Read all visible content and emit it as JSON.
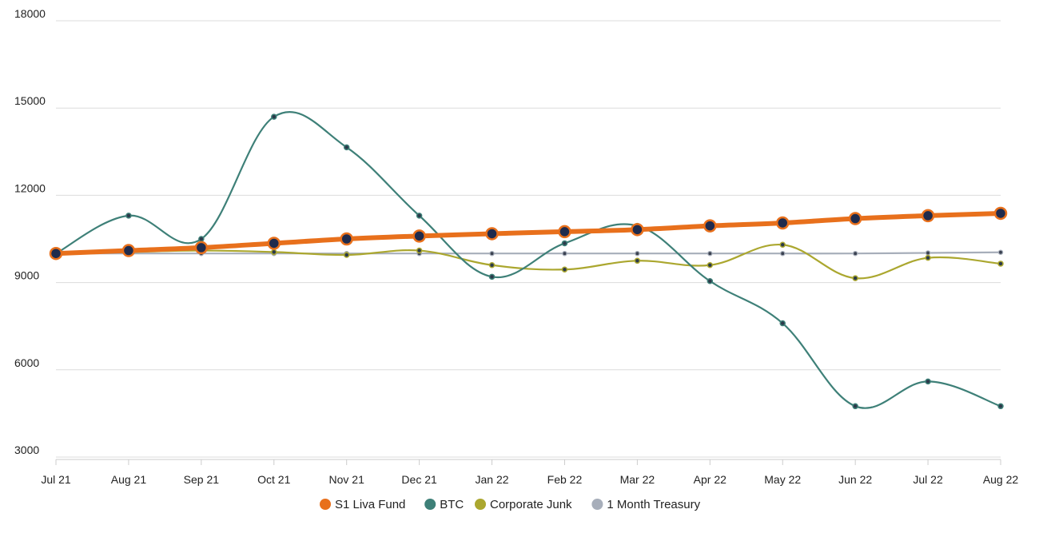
{
  "chart_data": {
    "type": "line",
    "title": "",
    "xlabel": "",
    "ylabel": "",
    "categories": [
      "Jul 21",
      "Aug 21",
      "Sep 21",
      "Oct 21",
      "Nov 21",
      "Dec 21",
      "Jan 22",
      "Feb 22",
      "Mar 22",
      "Apr 22",
      "May 22",
      "Jun 22",
      "Jul 22",
      "Aug 22"
    ],
    "ylim": [
      3000,
      18000
    ],
    "yticks": [
      3000,
      6000,
      9000,
      12000,
      15000,
      18000
    ],
    "grid": true,
    "legend_position": "bottom-center",
    "series": [
      {
        "name": "S1 Liva Fund",
        "color": "#e8701c",
        "values": [
          10000,
          10100,
          10200,
          10350,
          10500,
          10600,
          10680,
          10750,
          10820,
          10950,
          11050,
          11200,
          11300,
          11380
        ]
      },
      {
        "name": "BTC",
        "color": "#3e8078",
        "values": [
          10000,
          11300,
          10500,
          14700,
          13650,
          11300,
          9200,
          10350,
          10950,
          9050,
          7600,
          4750,
          5600,
          4750
        ]
      },
      {
        "name": "Corporate Junk",
        "color": "#aba72f",
        "values": [
          10000,
          10050,
          10100,
          10050,
          9950,
          10100,
          9600,
          9450,
          9750,
          9600,
          10300,
          9150,
          9850,
          9650
        ]
      },
      {
        "name": "1 Month Treasury",
        "color": "#a7aeba",
        "values": [
          10000,
          10000,
          10000,
          10000,
          10000,
          10000,
          10000,
          10000,
          10000,
          10000,
          10000,
          10000,
          10020,
          10040
        ]
      }
    ]
  }
}
